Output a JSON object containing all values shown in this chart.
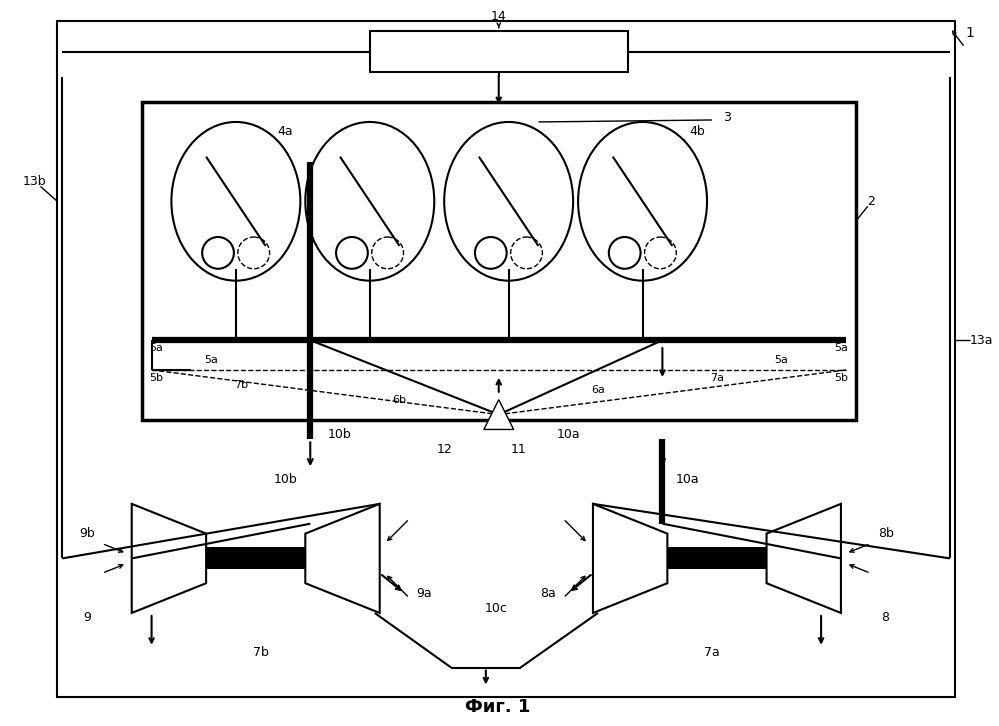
{
  "title": "Фиг. 1",
  "background": "#ffffff",
  "fig_width": 9.99,
  "fig_height": 7.26,
  "labels": {
    "1": "1",
    "2": "2",
    "3": "3",
    "4a": "4a",
    "4b": "4b",
    "5a": "5a",
    "5b": "5b",
    "6a": "6a",
    "6b": "6b",
    "7a": "7a",
    "7b": "7b",
    "8": "8",
    "8a": "8a",
    "8b": "8b",
    "9": "9",
    "9a": "9a",
    "9b": "9b",
    "10a": "10a",
    "10b": "10b",
    "10c": "10c",
    "11": "11",
    "12": "12",
    "13a": "13a",
    "13b": "13b",
    "14": "14"
  }
}
